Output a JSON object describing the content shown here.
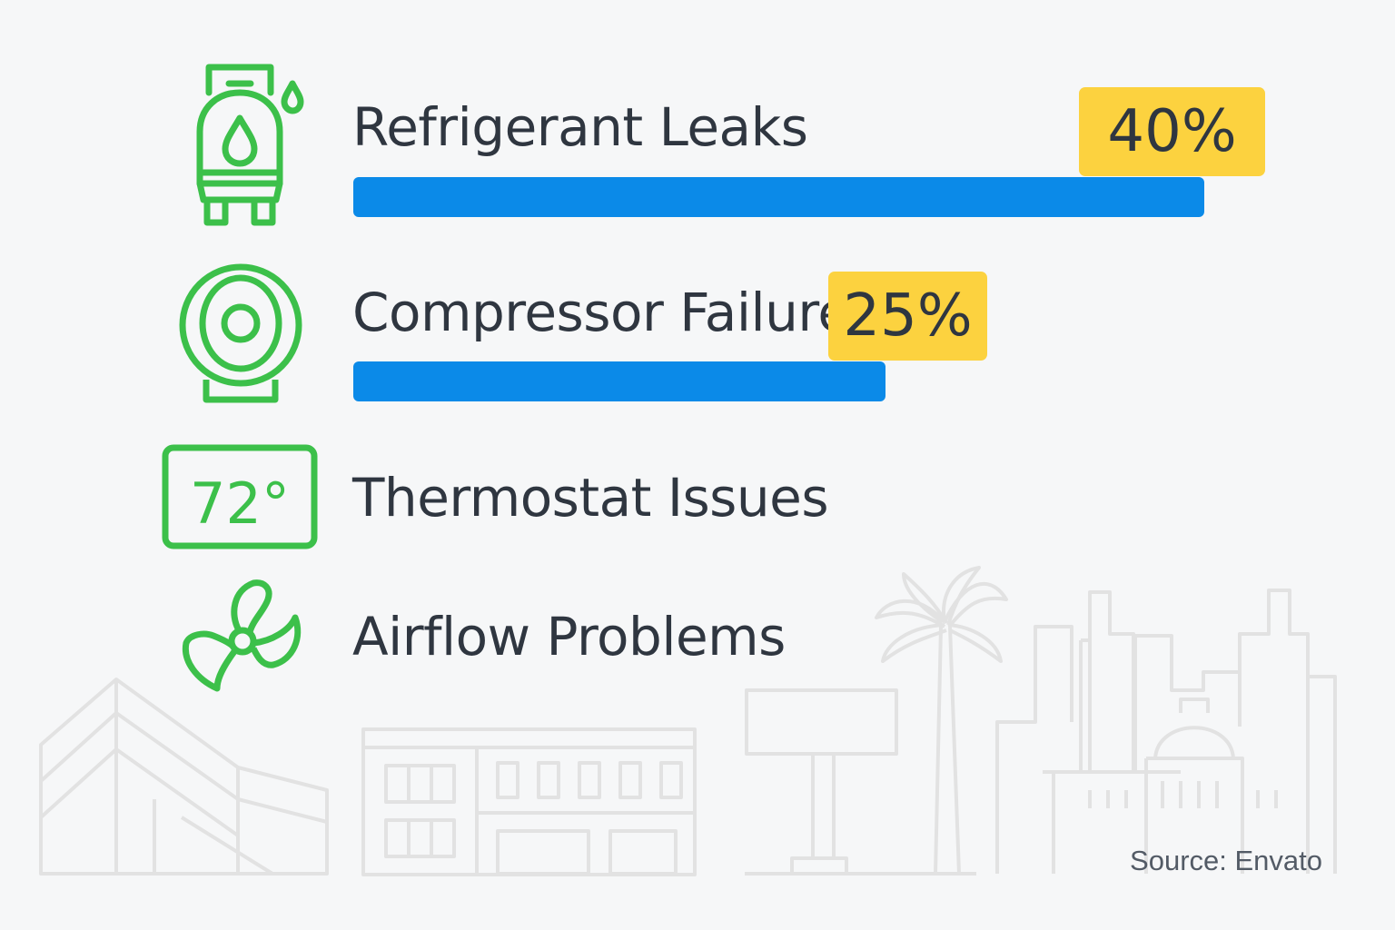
{
  "chart_data": {
    "type": "bar",
    "orientation": "horizontal",
    "categories": [
      "Refrigerant Leaks",
      "Compressor Failures",
      "Thermostat Issues",
      "Airflow Problems"
    ],
    "values": [
      40,
      25,
      null,
      null
    ],
    "value_labels": [
      "40%",
      "25%",
      "",
      ""
    ],
    "unit": "%"
  },
  "items": [
    {
      "label": "Refrigerant Leaks",
      "value_label": "40%",
      "icon": "refrigerant-tank-icon"
    },
    {
      "label": "Compressor Failures",
      "value_label": "25%",
      "icon": "compressor-icon"
    },
    {
      "label": "Thermostat Issues",
      "icon": "thermostat-icon",
      "icon_text": "72°"
    },
    {
      "label": "Airflow Problems",
      "icon": "fan-icon"
    }
  ],
  "source": "Source: Envato",
  "colors": {
    "icon": "#3cc04a",
    "bar": "#0b8ae8",
    "badge": "#fcd23f",
    "text": "#2f3640",
    "skyline": "#e2e2e2"
  }
}
